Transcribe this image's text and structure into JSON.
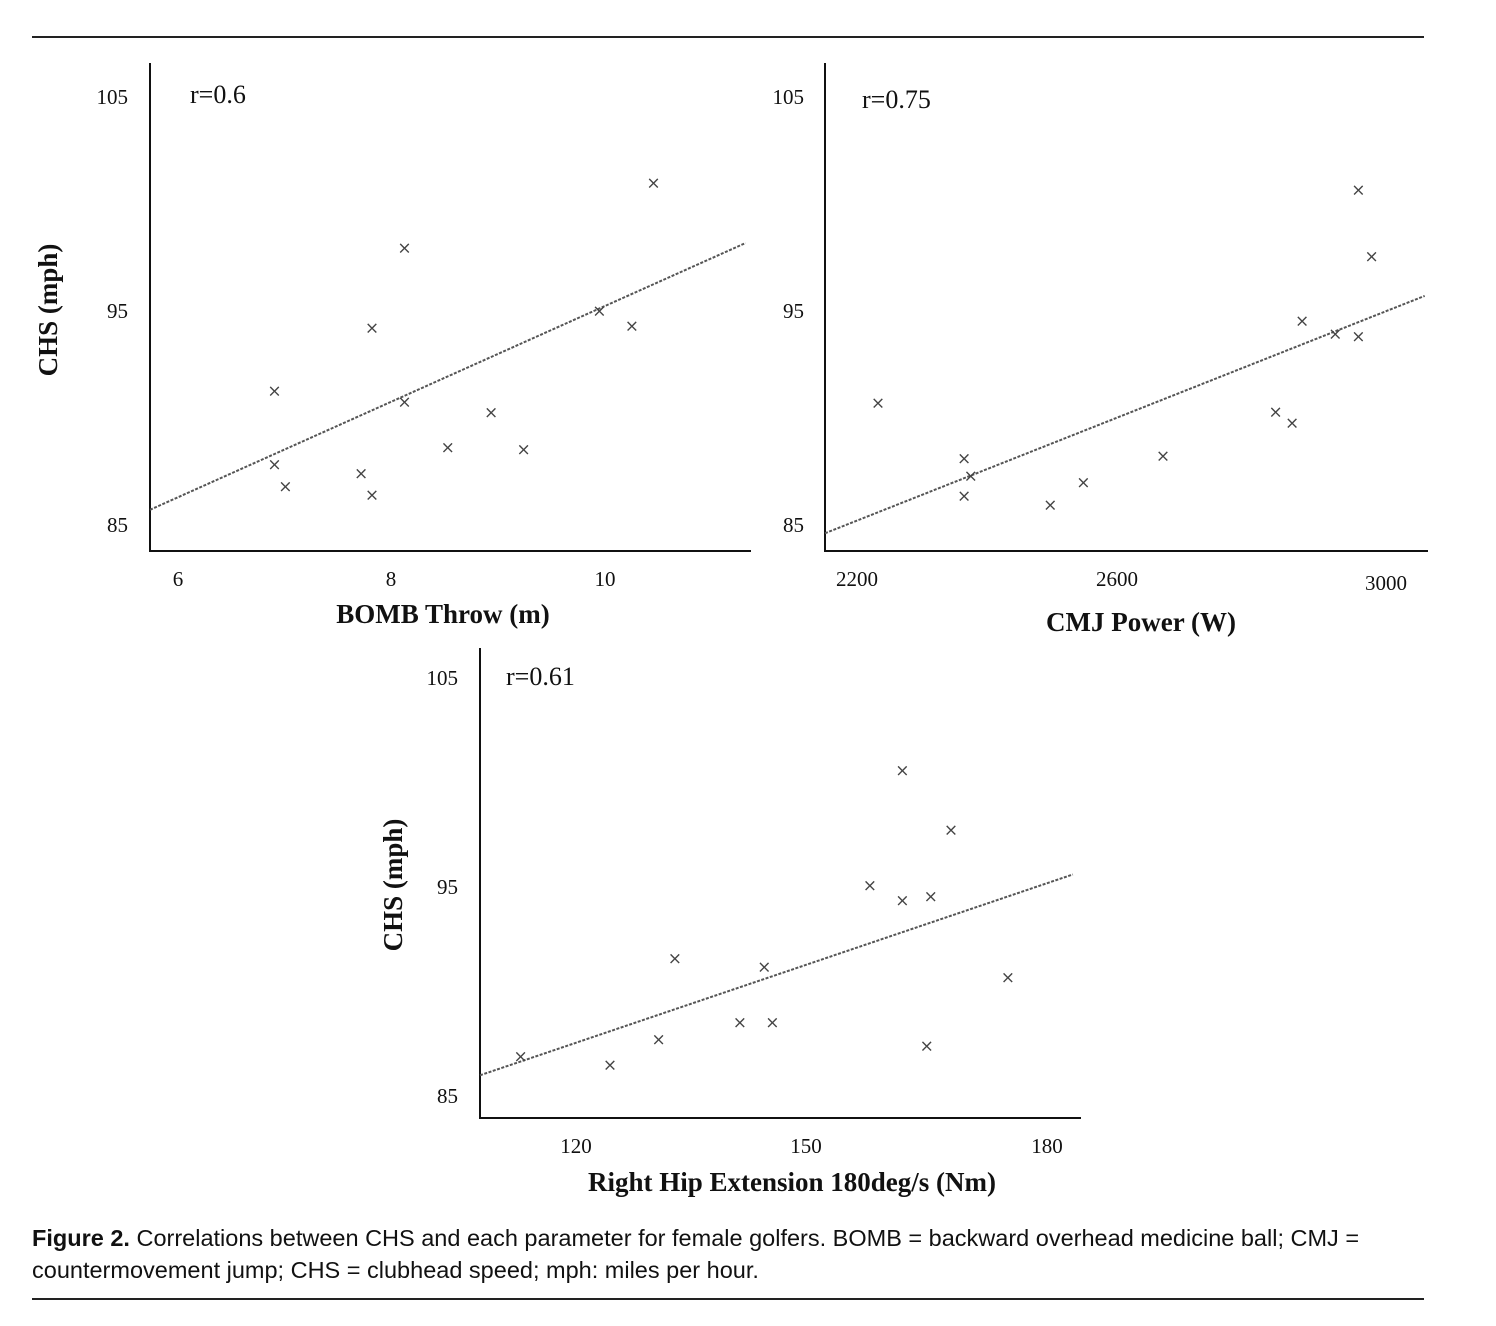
{
  "chart_data": [
    {
      "type": "scatter",
      "id": "bomb",
      "annotation": "r=0.6",
      "xlabel": "BOMB Throw (m)",
      "ylabel": "CHS (mph)",
      "xlim": [
        5.75,
        11.3
      ],
      "ylim": [
        84,
        106.5
      ],
      "xticks": [
        6,
        8,
        10
      ],
      "yticks": [
        85,
        95,
        105
      ],
      "points": [
        [
          6.9,
          91.4
        ],
        [
          6.9,
          88.0
        ],
        [
          7.0,
          87.0
        ],
        [
          7.7,
          87.6
        ],
        [
          7.8,
          94.3
        ],
        [
          7.8,
          86.6
        ],
        [
          8.1,
          98.0
        ],
        [
          8.1,
          90.9
        ],
        [
          8.5,
          88.8
        ],
        [
          8.9,
          90.4
        ],
        [
          9.2,
          88.7
        ],
        [
          9.9,
          95.1
        ],
        [
          10.2,
          94.4
        ],
        [
          10.4,
          101.0
        ]
      ],
      "trendline": [
        [
          5.75,
          85.9
        ],
        [
          11.25,
          98.2
        ]
      ]
    },
    {
      "type": "scatter",
      "id": "cmj",
      "annotation": "r=0.75",
      "xlabel": "CMJ Power (W)",
      "ylabel": "",
      "xlim": [
        2150,
        3060
      ],
      "ylim": [
        84.5,
        106.5
      ],
      "xticks": [
        2200,
        2600,
        3000
      ],
      "yticks": [
        85,
        95,
        105
      ],
      "points": [
        [
          2230,
          91.2
        ],
        [
          2360,
          88.7
        ],
        [
          2370,
          87.9
        ],
        [
          2360,
          87.0
        ],
        [
          2490,
          86.6
        ],
        [
          2540,
          87.6
        ],
        [
          2660,
          88.8
        ],
        [
          2830,
          90.8
        ],
        [
          2855,
          90.3
        ],
        [
          2870,
          94.9
        ],
        [
          2920,
          94.3
        ],
        [
          2955,
          94.2
        ],
        [
          2955,
          100.8
        ],
        [
          2975,
          97.8
        ]
      ],
      "trendline": [
        [
          2150,
          85.3
        ],
        [
          3055,
          96.0
        ]
      ]
    },
    {
      "type": "scatter",
      "id": "hip",
      "annotation": "r=0.61",
      "xlabel": "Right Hip Extension 180deg/s (Nm)",
      "ylabel": "CHS (mph)",
      "xlim": [
        110,
        184
      ],
      "ylim": [
        84,
        106
      ],
      "xticks": [
        120,
        150,
        180
      ],
      "yticks": [
        85,
        95,
        105
      ],
      "points": [
        [
          115,
          86.9
        ],
        [
          126,
          86.5
        ],
        [
          132,
          87.7
        ],
        [
          134,
          91.5
        ],
        [
          142,
          88.5
        ],
        [
          146,
          88.5
        ],
        [
          145,
          91.1
        ],
        [
          158,
          94.9
        ],
        [
          162,
          94.2
        ],
        [
          162,
          100.3
        ],
        [
          165.5,
          94.4
        ],
        [
          165,
          87.4
        ],
        [
          168,
          97.5
        ],
        [
          175,
          90.6
        ]
      ],
      "trendline": [
        [
          110,
          86.0
        ],
        [
          183,
          95.4
        ]
      ]
    }
  ],
  "caption": {
    "label": "Figure 2.",
    "text": " Correlations between CHS and each parameter for female golfers. BOMB = backward overhead medicine ball; CMJ = countermovement jump; CHS = clubhead speed; mph: miles per hour."
  }
}
